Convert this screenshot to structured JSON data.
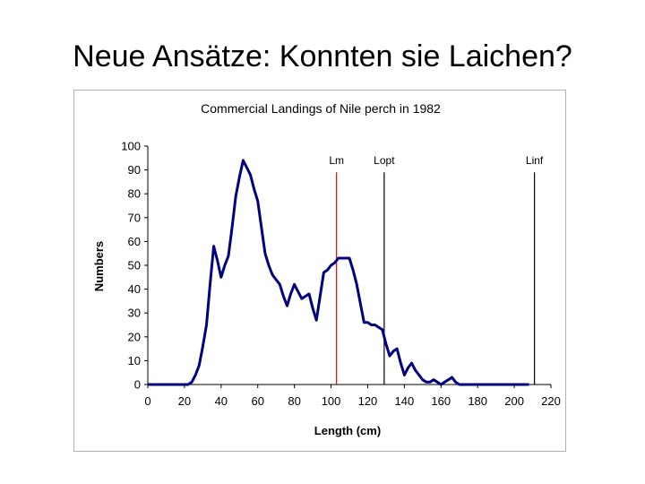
{
  "slide": {
    "title": "Neue Ansätze: Konnten sie Laichen?"
  },
  "chart_data": {
    "type": "line",
    "title": "Commercial Landings of Nile perch in 1982",
    "xlabel": "Length (cm)",
    "ylabel": "Numbers",
    "xlim": [
      0,
      220
    ],
    "ylim": [
      0,
      100
    ],
    "xticks": [
      0,
      20,
      40,
      60,
      80,
      100,
      120,
      140,
      160,
      180,
      200,
      220
    ],
    "yticks": [
      0,
      10,
      20,
      30,
      40,
      50,
      60,
      70,
      80,
      90,
      100
    ],
    "grid": false,
    "legend": "none",
    "line_color": "#000080",
    "series": [
      {
        "x": [
          0,
          2,
          4,
          6,
          8,
          10,
          12,
          14,
          16,
          18,
          20,
          22,
          24,
          26,
          28,
          30,
          32,
          34,
          36,
          38,
          40,
          42,
          44,
          46,
          48,
          50,
          52,
          54,
          56,
          58,
          60,
          62,
          64,
          66,
          68,
          70,
          72,
          74,
          76,
          78,
          80,
          82,
          84,
          86,
          88,
          90,
          92,
          94,
          96,
          98,
          100,
          102,
          104,
          106,
          108,
          110,
          112,
          114,
          116,
          118,
          120,
          122,
          124,
          126,
          128,
          130,
          132,
          134,
          136,
          138,
          140,
          142,
          144,
          146,
          148,
          150,
          152,
          154,
          156,
          158,
          160,
          162,
          164,
          166,
          168,
          170,
          172,
          174,
          176,
          178,
          180,
          182,
          184,
          186,
          188,
          190,
          192,
          194,
          196,
          198,
          200,
          202,
          204,
          206,
          208
        ],
        "values": [
          0,
          0,
          0,
          0,
          0,
          0,
          0,
          0,
          0,
          0,
          0,
          0,
          1,
          4,
          8,
          16,
          25,
          42,
          58,
          52,
          45,
          50,
          54,
          66,
          79,
          87,
          94,
          91,
          88,
          82,
          77,
          66,
          55,
          50,
          46,
          44,
          42,
          37,
          33,
          38,
          42,
          39,
          36,
          37,
          38,
          32,
          27,
          37,
          47,
          48,
          50,
          51,
          53,
          53,
          53,
          53,
          48,
          42,
          34,
          26,
          26,
          25,
          25,
          24,
          23,
          17,
          12,
          14,
          15,
          9,
          4,
          7,
          9,
          6,
          4,
          2,
          1,
          1,
          2,
          1,
          0,
          1,
          2,
          3,
          1,
          0,
          0,
          0,
          0,
          0,
          0,
          0,
          0,
          0,
          0,
          0,
          0,
          0,
          0,
          0,
          0,
          0,
          0,
          0,
          0
        ]
      }
    ],
    "reference_lines": [
      {
        "label": "Lm",
        "x": 103,
        "color": "#e00000"
      },
      {
        "label": "Lopt",
        "x": 129,
        "color": "#000000"
      },
      {
        "label": "Linf",
        "x": 211,
        "color": "#000000"
      }
    ]
  }
}
